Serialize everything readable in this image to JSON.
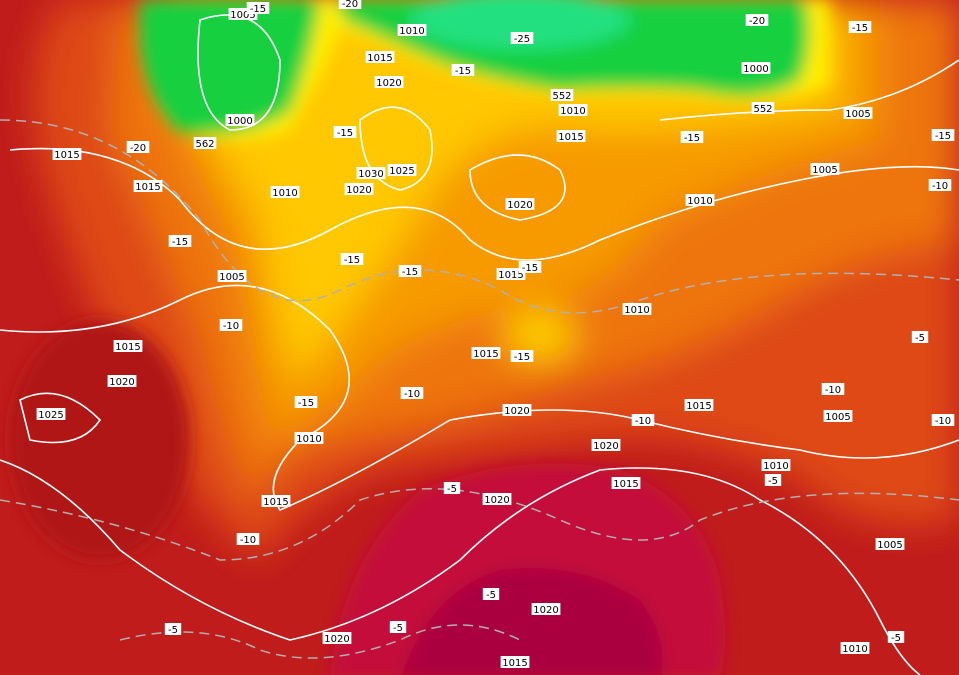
{
  "labels": [
    "1005",
    "-15",
    "-20",
    "1010",
    "-25",
    "-20",
    "-15",
    "1000",
    "1015",
    "-15",
    "1020",
    "552",
    "1010",
    "552",
    "1000",
    "562",
    "-15",
    "1015",
    "-15",
    "1005",
    "-15",
    "1015",
    "-20",
    "1015",
    "1030",
    "1025",
    "1020",
    "1010",
    "1005",
    "-10",
    "1020",
    "1010",
    "-15",
    "-15",
    "-15",
    "1005",
    "1015",
    "-15",
    "1010",
    "-10",
    "1015",
    "1015",
    "-15",
    "-5",
    "1020",
    "-10",
    "-10",
    "-15",
    "1025",
    "1020",
    "1015",
    "1005",
    "-10",
    "-10",
    "1010",
    "1020",
    "1010",
    "-5",
    "1015",
    "-5",
    "1020",
    "1015",
    "-10",
    "1005",
    "-5",
    "1020",
    "-5",
    "-5",
    "1020",
    "1010",
    "-5",
    "1015"
  ]
}
